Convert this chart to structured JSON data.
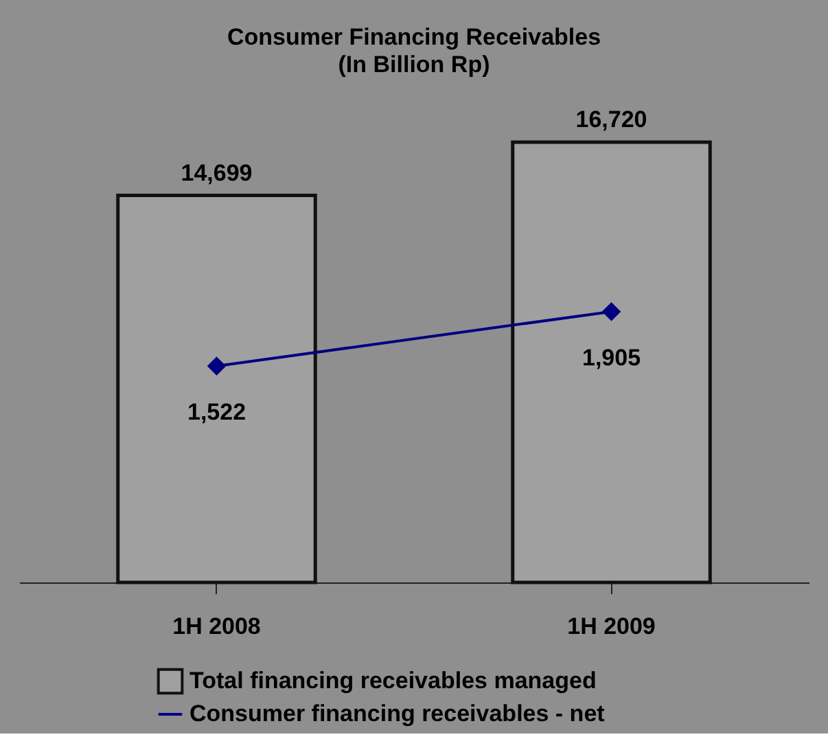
{
  "chart_data": {
    "type": "bar",
    "title": "Consumer Financing Receivables",
    "subtitle": "(In Billion Rp)",
    "categories": [
      "1H 2008",
      "1H 2009"
    ],
    "series": [
      {
        "name": "Total financing receivables managed",
        "color": "#a0a0a0",
        "values": [
          14699,
          16720
        ],
        "value_labels": [
          "14,699",
          "16,720"
        ]
      },
      {
        "name": "Consumer financing receivables - net",
        "type": "line",
        "axis": "y2",
        "color": "#000080",
        "values": [
          1522,
          1905
        ],
        "value_labels": [
          "1,522",
          "1,905"
        ]
      }
    ],
    "tick_labels": "x",
    "legend": "bottom",
    "marker": "diamond"
  }
}
